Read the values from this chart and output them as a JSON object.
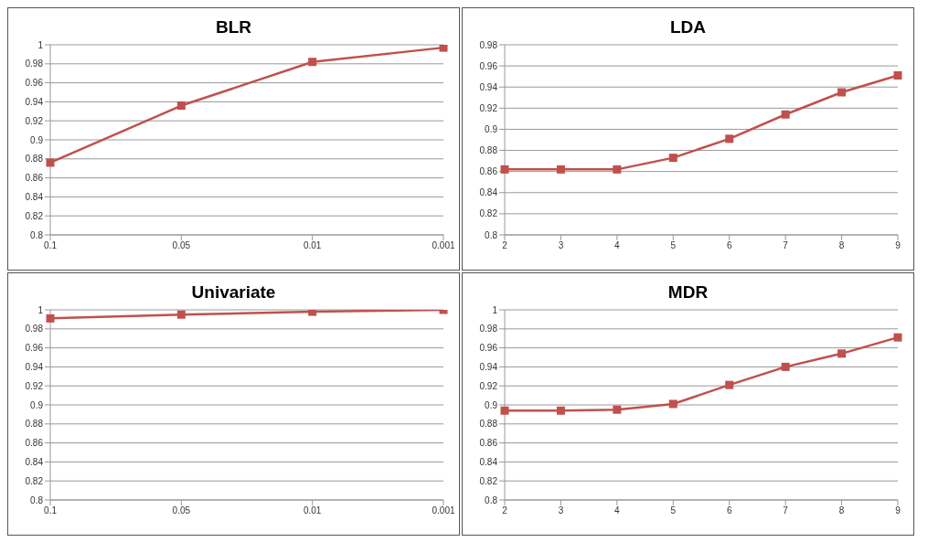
{
  "chart_data": [
    {
      "type": "line",
      "title": "BLR",
      "categories": [
        "0.1",
        "0.05",
        "0.01",
        "0.001"
      ],
      "series": [
        {
          "color": "#c0504d",
          "values": [
            0.876,
            0.936,
            0.982,
            0.997
          ]
        }
      ],
      "ylim": [
        0.8,
        1
      ],
      "yticks": [
        0.8,
        0.82,
        0.84,
        0.86,
        0.88,
        0.9,
        0.92,
        0.94,
        0.96,
        0.98,
        1
      ],
      "grid": "y",
      "marker": "square",
      "legend": false
    },
    {
      "type": "line",
      "title": "LDA",
      "categories": [
        "2",
        "3",
        "4",
        "5",
        "6",
        "7",
        "8",
        "9"
      ],
      "series": [
        {
          "color": "#c0504d",
          "values": [
            0.862,
            0.862,
            0.862,
            0.873,
            0.891,
            0.914,
            0.935,
            0.951
          ]
        }
      ],
      "ylim": [
        0.8,
        0.98
      ],
      "yticks": [
        0.8,
        0.82,
        0.84,
        0.86,
        0.88,
        0.9,
        0.92,
        0.94,
        0.96,
        0.98
      ],
      "grid": "y",
      "marker": "square",
      "legend": false
    },
    {
      "type": "line",
      "title": "Univariate",
      "categories": [
        "0.1",
        "0.05",
        "0.01",
        "0.001"
      ],
      "series": [
        {
          "color": "#c0504d",
          "values": [
            0.991,
            0.995,
            0.998,
            1
          ]
        }
      ],
      "ylim": [
        0.8,
        1
      ],
      "yticks": [
        0.8,
        0.82,
        0.84,
        0.86,
        0.88,
        0.9,
        0.92,
        0.94,
        0.96,
        0.98,
        1
      ],
      "grid": "y",
      "marker": "square",
      "legend": false
    },
    {
      "type": "line",
      "title": "MDR",
      "categories": [
        "2",
        "3",
        "4",
        "5",
        "6",
        "7",
        "8",
        "9"
      ],
      "series": [
        {
          "color": "#c0504d",
          "values": [
            0.894,
            0.894,
            0.895,
            0.901,
            0.921,
            0.94,
            0.954,
            0.971
          ]
        }
      ],
      "ylim": [
        0.8,
        1
      ],
      "yticks": [
        0.8,
        0.82,
        0.84,
        0.86,
        0.88,
        0.9,
        0.92,
        0.94,
        0.96,
        0.98,
        1
      ],
      "grid": "y",
      "marker": "square",
      "legend": false
    }
  ]
}
